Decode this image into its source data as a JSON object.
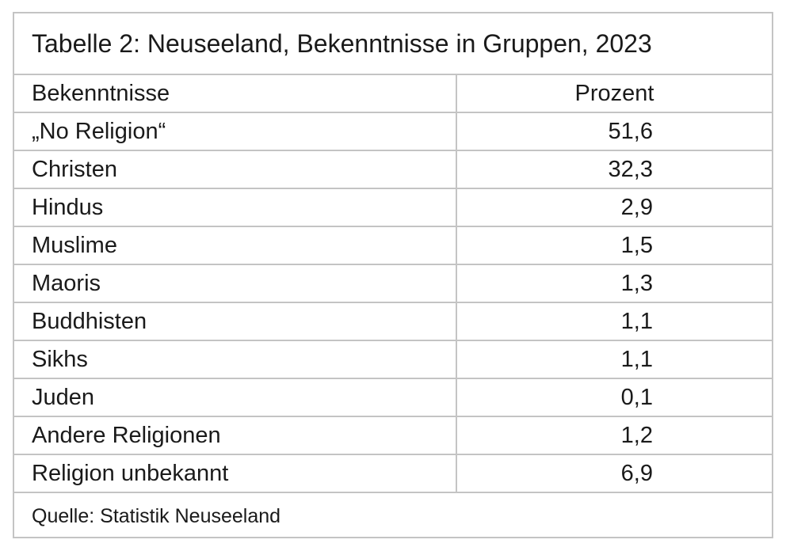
{
  "title": "Tabelle 2: Neuseeland, Bekenntnisse in Gruppen, 2023",
  "table": {
    "header": [
      "Bekenntnisse",
      "Prozent"
    ],
    "rows": [
      [
        "„No Religion“",
        "51,6"
      ],
      [
        "Christen",
        "32,3"
      ],
      [
        "Hindus",
        "2,9"
      ],
      [
        "Muslime",
        "1,5"
      ],
      [
        "Maoris",
        "1,3"
      ],
      [
        "Buddhisten",
        "1,1"
      ],
      [
        "Sikhs",
        "1,1"
      ],
      [
        "Juden",
        "0,1"
      ],
      [
        "Andere Religionen",
        "1,2"
      ],
      [
        "Religion unbekannt",
        "6,9"
      ]
    ]
  },
  "source": "Quelle: Statistik Neuseeland"
}
